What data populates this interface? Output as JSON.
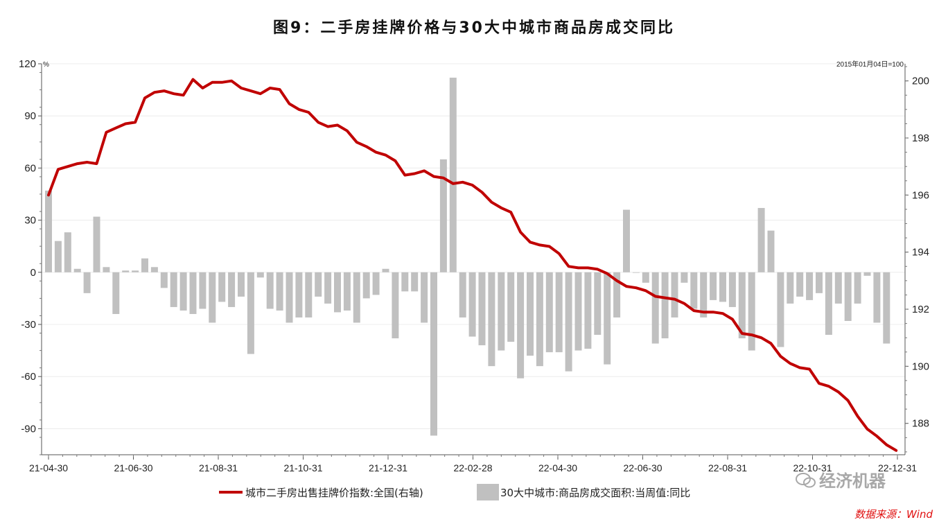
{
  "title": "图9：二手房挂牌价格与30大中城市商品房成交同比",
  "source": "数据来源：Wind",
  "watermark": "经济机器",
  "chart_data": {
    "type": "bar+line",
    "title": "图9：二手房挂牌价格与30大中城市商品房成交同比",
    "left_axis": {
      "unit": "%",
      "range": [
        -105,
        120
      ],
      "ticks": [
        120,
        90,
        60,
        30,
        0,
        -30,
        -60,
        -90
      ]
    },
    "right_axis": {
      "unit": "2015年01月04日=100",
      "range": [
        186.9,
        200.6
      ],
      "ticks": [
        200,
        198,
        196,
        194,
        192,
        190,
        188
      ]
    },
    "x_axis": {
      "ticks": [
        "21-04-30",
        "21-06-30",
        "21-08-31",
        "21-10-31",
        "21-12-31",
        "22-02-28",
        "22-04-30",
        "22-06-30",
        "22-08-31",
        "22-10-31",
        "22-12-31"
      ]
    },
    "grid": true,
    "legend_position": "bottom",
    "series": [
      {
        "name": "城市二手房出售挂牌价指数:全国(右轴)",
        "type": "line",
        "axis": "right",
        "color": "#c00000",
        "values": [
          196.0,
          196.9,
          197.0,
          197.1,
          197.15,
          197.1,
          198.2,
          198.35,
          198.5,
          198.55,
          199.4,
          199.6,
          199.65,
          199.55,
          199.5,
          200.05,
          199.75,
          199.95,
          199.95,
          200.0,
          199.75,
          199.65,
          199.55,
          199.75,
          199.7,
          199.2,
          199.0,
          198.9,
          198.55,
          198.4,
          198.45,
          198.25,
          197.85,
          197.7,
          197.5,
          197.4,
          197.2,
          196.7,
          196.75,
          196.85,
          196.65,
          196.6,
          196.4,
          196.45,
          196.35,
          196.1,
          195.75,
          195.55,
          195.4,
          194.7,
          194.35,
          194.25,
          194.2,
          193.95,
          193.5,
          193.45,
          193.45,
          193.4,
          193.25,
          193.0,
          192.8,
          192.75,
          192.65,
          192.45,
          192.4,
          192.35,
          192.2,
          191.95,
          191.9,
          191.9,
          191.85,
          191.65,
          191.15,
          191.1,
          191.0,
          190.8,
          190.35,
          190.1,
          189.95,
          189.9,
          189.4,
          189.3,
          189.1,
          188.8,
          188.25,
          187.8,
          187.55,
          187.25,
          187.05
        ]
      },
      {
        "name": "30大中城市:商品房成交面积:当周值:同比",
        "type": "bar",
        "axis": "left",
        "color": "#c0c0c0",
        "values": [
          47,
          18,
          23,
          2,
          -12,
          32,
          3,
          -24,
          1,
          1,
          8,
          3,
          -9,
          -20,
          -22,
          -24,
          -21,
          -29,
          -17,
          -20,
          -14,
          -47,
          -3,
          -21,
          -22,
          -29,
          -26,
          -26,
          -14,
          -18,
          -23,
          -22,
          -29,
          -15,
          -13,
          2,
          -38,
          -11,
          -11,
          -29,
          -94,
          65,
          112,
          -26,
          -37,
          -42,
          -54,
          -45,
          -40,
          -61,
          -48,
          -54,
          -46,
          -46,
          -57,
          -45,
          -44,
          -36,
          -53,
          -26,
          36,
          0,
          -6,
          -41,
          -38,
          -26,
          -6,
          -21,
          -26,
          -16,
          -17,
          -20,
          -38,
          -45,
          37,
          24,
          -43,
          -18,
          -14,
          -16,
          -12,
          -36,
          -18,
          -28,
          -18,
          -2,
          -29,
          -41
        ]
      }
    ],
    "x_start": "21-04-30",
    "x_end": "22-12-31"
  }
}
